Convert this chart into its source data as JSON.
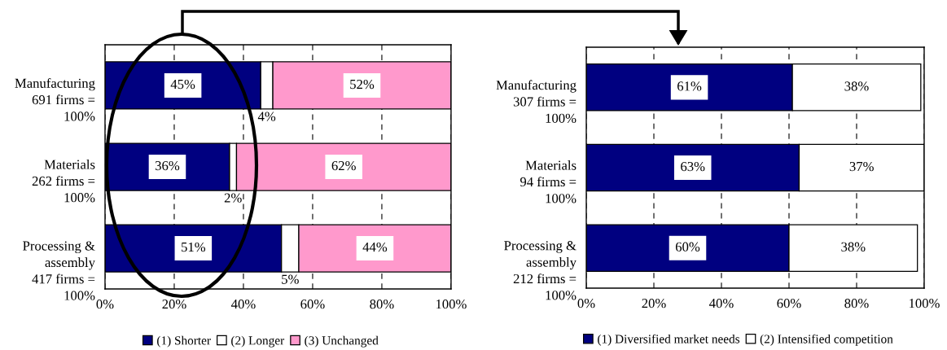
{
  "chart_data": [
    {
      "type": "bar",
      "orientation": "horizontal",
      "stacked": true,
      "categories": [
        "Manufacturing\n691 firms =\n100%",
        "Materials\n262 firms =\n100%",
        "Processing &\nassembly\n417 firms =\n100%"
      ],
      "series": [
        {
          "name": "(1) Shorter",
          "color": "#000080",
          "values": [
            45,
            36,
            51
          ],
          "value_labels": [
            "45%",
            "36%",
            "51%"
          ]
        },
        {
          "name": "(2) Longer",
          "color": "#ffffff",
          "values": [
            3.5,
            2,
            5
          ],
          "value_labels": [
            "4%",
            "2%",
            "5%"
          ]
        },
        {
          "name": "(3) Unchanged",
          "color": "#ff99cc",
          "values": [
            51.5,
            62,
            44
          ],
          "value_labels": [
            "52%",
            "62%",
            "44%"
          ]
        }
      ],
      "xlim": [
        0,
        100
      ],
      "xticks": [
        {
          "value": 0,
          "label": "0%"
        },
        {
          "value": 20,
          "label": "20%"
        },
        {
          "value": 40,
          "label": "40%"
        },
        {
          "value": 60,
          "label": "60%"
        },
        {
          "value": 80,
          "label": "80%"
        },
        {
          "value": 100,
          "label": "100%"
        }
      ],
      "grid": "x",
      "legend": "bottom"
    },
    {
      "type": "bar",
      "orientation": "horizontal",
      "stacked": true,
      "categories": [
        "Manufacturing\n307 firms =\n100%",
        "Materials\n94 firms =\n100%",
        "Processing &\nassembly\n212 firms =\n100%"
      ],
      "series": [
        {
          "name": "(1) Diversified market needs",
          "color": "#000080",
          "values": [
            61,
            63,
            60
          ],
          "value_labels": [
            "61%",
            "63%",
            "60%"
          ]
        },
        {
          "name": "(2) Intensified competition",
          "color": "#ffffff",
          "values": [
            38,
            37,
            38
          ],
          "value_labels": [
            "38%",
            "37%",
            "38%"
          ]
        }
      ],
      "xlim": [
        0,
        100
      ],
      "xticks": [
        {
          "value": 0,
          "label": "0%"
        },
        {
          "value": 20,
          "label": "20%"
        },
        {
          "value": 40,
          "label": "40%"
        },
        {
          "value": 60,
          "label": "60%"
        },
        {
          "value": 80,
          "label": "80%"
        },
        {
          "value": 100,
          "label": "100%"
        }
      ],
      "grid": "x",
      "legend": "bottom"
    }
  ]
}
